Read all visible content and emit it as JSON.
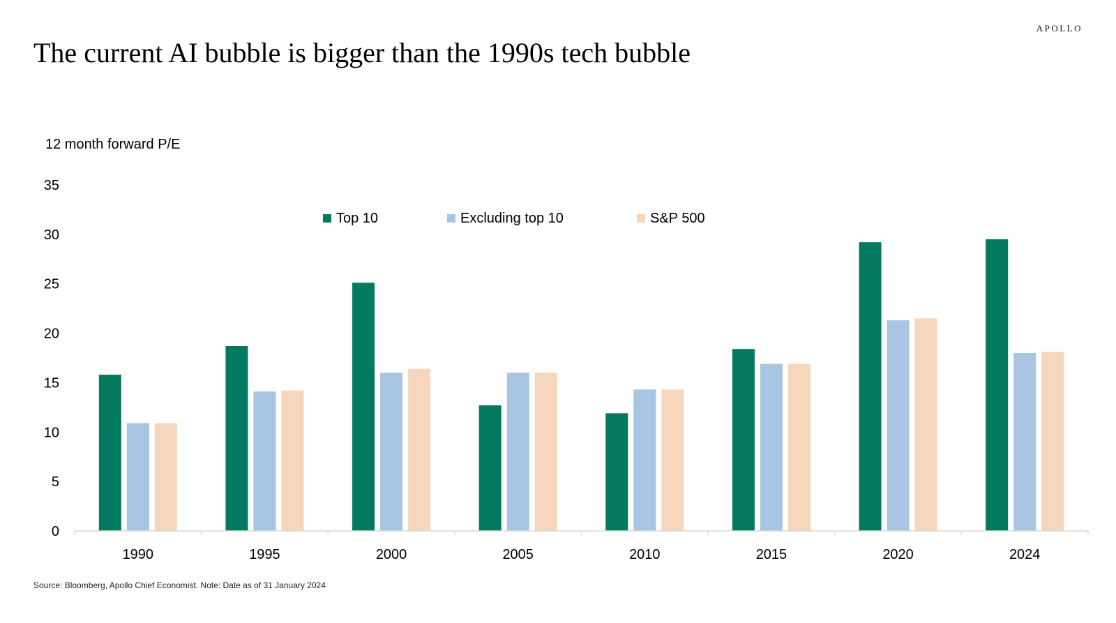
{
  "brand": "APOLLO",
  "source": "Source: Bloomberg, Apollo Chief Economist. Note: Date as of 31 January 2024",
  "chart_data": {
    "type": "bar",
    "title": "The current AI bubble is bigger than the 1990s tech bubble",
    "ylabel": "12 month forward P/E",
    "xlabel": "",
    "categories": [
      "1990",
      "1995",
      "2000",
      "2005",
      "2010",
      "2015",
      "2020",
      "2024"
    ],
    "series": [
      {
        "name": "Top 10",
        "color": "#037A5F",
        "values": [
          15.8,
          18.7,
          25.1,
          12.7,
          11.9,
          18.4,
          29.2,
          29.5
        ]
      },
      {
        "name": "Excluding top 10",
        "color": "#A8C5E3",
        "values": [
          10.9,
          14.1,
          16.0,
          16.0,
          14.3,
          16.9,
          21.3,
          18.0
        ]
      },
      {
        "name": "S&P 500",
        "color": "#F7D6BE",
        "values": [
          10.9,
          14.2,
          16.4,
          16.0,
          14.3,
          16.9,
          21.5,
          18.1
        ]
      }
    ],
    "ylim": [
      0,
      35
    ],
    "yticks": [
      0,
      5,
      10,
      15,
      20,
      25,
      30,
      35
    ],
    "grid": false,
    "legend": "top-center"
  }
}
